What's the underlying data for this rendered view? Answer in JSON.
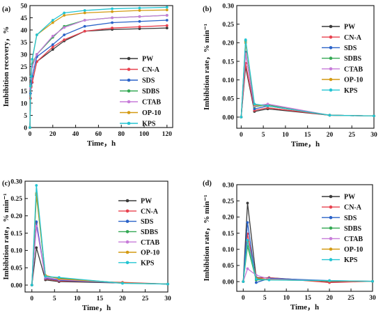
{
  "colors": {
    "PW": "#3a3a3a",
    "CN-A": "#e8414e",
    "SDS": "#2a62c8",
    "SDBS": "#33a853",
    "CTAB": "#c77bd9",
    "OP-10": "#d49a12",
    "KPS": "#23c4d2"
  },
  "chart_data": [
    {
      "type": "line",
      "panel_label": "(a)",
      "xlabel": "Time，h",
      "ylabel": "Imbibition recovery，%",
      "xlim": [
        0,
        125
      ],
      "ylim": [
        0,
        50
      ],
      "xticks": [
        0,
        20,
        40,
        60,
        80,
        100,
        120
      ],
      "yticks": [
        0,
        5,
        10,
        15,
        20,
        25,
        30,
        35,
        40,
        45,
        50
      ],
      "legend_position": "bottom-right",
      "grid": false,
      "series": [
        {
          "name": "PW",
          "x": [
            0,
            0.5,
            1,
            2,
            6,
            20,
            30,
            48,
            72,
            96,
            120
          ],
          "y": [
            0,
            12,
            17,
            18.5,
            27,
            32,
            35.5,
            39.5,
            40.2,
            40.5,
            40.8
          ]
        },
        {
          "name": "CN-A",
          "x": [
            0,
            0.5,
            1,
            2,
            6,
            20,
            30,
            48,
            72,
            96,
            120
          ],
          "y": [
            0,
            12,
            16.5,
            18.5,
            27,
            33,
            36,
            39.5,
            40.8,
            41.3,
            41.8
          ]
        },
        {
          "name": "SDS",
          "x": [
            0,
            0.5,
            1,
            2,
            6,
            20,
            30,
            48,
            72,
            96,
            120
          ],
          "y": [
            0,
            14,
            18,
            21,
            29,
            34,
            38,
            41.5,
            43,
            43.5,
            44
          ]
        },
        {
          "name": "SDBS",
          "x": [
            0,
            0.5,
            1,
            2,
            6,
            20,
            30,
            48,
            72,
            96,
            120
          ],
          "y": [
            0,
            17,
            21,
            26,
            30,
            37,
            41.5,
            44,
            45,
            45.5,
            46
          ]
        },
        {
          "name": "CTAB",
          "x": [
            0,
            0.5,
            1,
            2,
            6,
            20,
            30,
            48,
            72,
            96,
            120
          ],
          "y": [
            0,
            16,
            20,
            25,
            30,
            37.5,
            41,
            44,
            45,
            45.5,
            46
          ]
        },
        {
          "name": "OP-10",
          "x": [
            0,
            0.5,
            1,
            2,
            6,
            20,
            30,
            48,
            72,
            96,
            120
          ],
          "y": [
            0,
            17,
            21,
            28,
            38,
            43,
            46,
            47,
            47.5,
            48,
            48.2
          ]
        },
        {
          "name": "KPS",
          "x": [
            0,
            0.5,
            1,
            2,
            6,
            20,
            30,
            48,
            72,
            96,
            120
          ],
          "y": [
            0,
            17,
            21,
            28,
            38,
            44,
            47,
            48,
            48.7,
            49,
            49.3
          ]
        }
      ]
    },
    {
      "type": "line",
      "panel_label": "(b)",
      "xlabel": "Time，h",
      "ylabel": "Imbibition rate，% min⁻¹",
      "xlim": [
        -1,
        30
      ],
      "ylim": [
        -0.03,
        0.3
      ],
      "xticks": [
        0,
        5,
        10,
        15,
        20,
        25,
        30
      ],
      "yticks": [
        0.0,
        0.05,
        0.1,
        0.15,
        0.2,
        0.25,
        0.3
      ],
      "legend_position": "top-right",
      "grid": false,
      "series": [
        {
          "name": "PW",
          "x": [
            0,
            1,
            3,
            6,
            20,
            30
          ],
          "y": [
            0,
            0.135,
            0.015,
            0.022,
            0.005,
            0.003
          ]
        },
        {
          "name": "CN-A",
          "x": [
            0,
            1,
            3,
            6,
            20,
            30
          ],
          "y": [
            0,
            0.145,
            0.018,
            0.025,
            0.005,
            0.003
          ]
        },
        {
          "name": "SDS",
          "x": [
            0,
            1,
            3,
            6,
            20,
            30
          ],
          "y": [
            0,
            0.175,
            0.022,
            0.03,
            0.005,
            0.003
          ]
        },
        {
          "name": "SDBS",
          "x": [
            0,
            1,
            3,
            6,
            20,
            30
          ],
          "y": [
            0,
            0.205,
            0.028,
            0.033,
            0.005,
            0.003
          ]
        },
        {
          "name": "CTAB",
          "x": [
            0,
            1,
            3,
            6,
            20,
            30
          ],
          "y": [
            0,
            0.17,
            0.03,
            0.035,
            0.005,
            0.003
          ]
        },
        {
          "name": "OP-10",
          "x": [
            0,
            1,
            3,
            6,
            20,
            30
          ],
          "y": [
            0,
            0.2,
            0.033,
            0.03,
            0.005,
            0.003
          ]
        },
        {
          "name": "KPS",
          "x": [
            0,
            1,
            3,
            6,
            20,
            30
          ],
          "y": [
            0,
            0.208,
            0.035,
            0.03,
            0.005,
            0.003
          ]
        }
      ]
    },
    {
      "type": "line",
      "panel_label": "(c)",
      "xlabel": "Time，h",
      "ylabel": "Imbibition rate，% min⁻¹",
      "xlim": [
        -1.5,
        30
      ],
      "ylim": [
        -0.02,
        0.3
      ],
      "xticks": [
        0,
        5,
        10,
        15,
        20,
        25,
        30
      ],
      "yticks": [
        0.0,
        0.05,
        0.1,
        0.15,
        0.2,
        0.25,
        0.3
      ],
      "legend_position": "top-right",
      "grid": false,
      "series": [
        {
          "name": "PW",
          "x": [
            0,
            1,
            3,
            6,
            20,
            30
          ],
          "y": [
            0,
            0.108,
            0.015,
            0.01,
            0.006,
            0.003
          ]
        },
        {
          "name": "CN-A",
          "x": [
            0,
            1,
            3,
            6,
            20,
            30
          ],
          "y": [
            0,
            0.18,
            0.018,
            0.012,
            0.008,
            0.003
          ]
        },
        {
          "name": "SDS",
          "x": [
            0,
            1,
            3,
            6,
            20,
            30
          ],
          "y": [
            0,
            0.183,
            0.02,
            0.014,
            0.006,
            0.003
          ]
        },
        {
          "name": "SDBS",
          "x": [
            0,
            1,
            3,
            6,
            20,
            30
          ],
          "y": [
            0,
            0.26,
            0.025,
            0.02,
            0.006,
            0.003
          ]
        },
        {
          "name": "CTAB",
          "x": [
            0,
            1,
            3,
            6,
            20,
            30
          ],
          "y": [
            0,
            0.17,
            0.022,
            0.016,
            0.006,
            0.003
          ]
        },
        {
          "name": "OP-10",
          "x": [
            0,
            1,
            3,
            6,
            20,
            30
          ],
          "y": [
            0,
            0.265,
            0.028,
            0.018,
            0.006,
            0.003
          ]
        },
        {
          "name": "KPS",
          "x": [
            0,
            1,
            3,
            6,
            20,
            30
          ],
          "y": [
            0,
            0.288,
            0.025,
            0.022,
            0.005,
            0.003
          ]
        }
      ]
    },
    {
      "type": "line",
      "panel_label": "(d)",
      "xlabel": "Time，h",
      "ylabel": "Imbibition rate，% min⁻¹",
      "xlim": [
        -1.5,
        30
      ],
      "ylim": [
        -0.03,
        0.3
      ],
      "xticks": [
        0,
        5,
        10,
        15,
        20,
        25,
        30
      ],
      "yticks": [
        0.0,
        0.05,
        0.1,
        0.15,
        0.2,
        0.25,
        0.3
      ],
      "legend_position": "top-right",
      "grid": false,
      "series": [
        {
          "name": "PW",
          "x": [
            0,
            1,
            3,
            6,
            20,
            30
          ],
          "y": [
            0,
            0.243,
            0.012,
            0.012,
            0.0,
            0.001
          ]
        },
        {
          "name": "CN-A",
          "x": [
            0,
            1,
            3,
            6,
            20,
            30
          ],
          "y": [
            0,
            0.148,
            0.01,
            0.012,
            -0.003,
            0.001
          ]
        },
        {
          "name": "SDS",
          "x": [
            0,
            1,
            3,
            6,
            20,
            30
          ],
          "y": [
            0,
            0.183,
            -0.003,
            0.01,
            0.003,
            0.001
          ]
        },
        {
          "name": "SDBS",
          "x": [
            0,
            1,
            3,
            6,
            20,
            30
          ],
          "y": [
            0,
            0.11,
            0.005,
            0.006,
            0.002,
            0.001
          ]
        },
        {
          "name": "CTAB",
          "x": [
            0,
            1,
            3,
            6,
            20,
            30
          ],
          "y": [
            0,
            0.04,
            0.02,
            0.008,
            0.002,
            0.001
          ]
        },
        {
          "name": "OP-10",
          "x": [
            0,
            1,
            3,
            6,
            20,
            30
          ],
          "y": [
            0,
            0.125,
            0.01,
            0.006,
            0.002,
            0.001
          ]
        },
        {
          "name": "KPS",
          "x": [
            0,
            1,
            3,
            6,
            20,
            30
          ],
          "y": [
            0,
            0.128,
            0.008,
            0.005,
            0.003,
            0.001
          ]
        }
      ]
    }
  ]
}
